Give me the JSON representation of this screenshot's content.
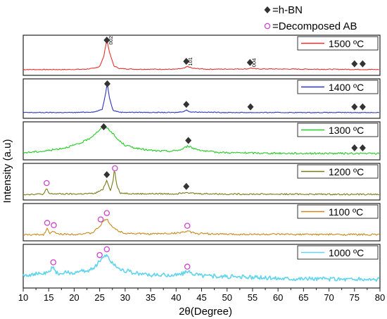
{
  "chart_data": {
    "type": "line",
    "xlabel": "2θ(Degree)",
    "ylabel": "Intensity (a.u)",
    "xlim": [
      10,
      80
    ],
    "x_ticks": [
      10,
      15,
      20,
      25,
      30,
      35,
      40,
      45,
      50,
      55,
      60,
      65,
      70,
      75,
      80
    ],
    "grid": false,
    "legend_position": "top-right",
    "legend": [
      {
        "marker": "diamond",
        "label": "=h-BN"
      },
      {
        "marker": "circle",
        "label": "=Decomposed AB"
      }
    ],
    "marker_colors": {
      "diamond": "#333333",
      "circle": "#cc44cc"
    },
    "series": [
      {
        "name": "1500 ºC",
        "color": "#e8312d",
        "points": [
          [
            10,
            0.05
          ],
          [
            18,
            0.05
          ],
          [
            22,
            0.06
          ],
          [
            24,
            0.09
          ],
          [
            25,
            0.15
          ],
          [
            25.8,
            0.45
          ],
          [
            26.4,
            1.0
          ],
          [
            27,
            0.55
          ],
          [
            27.8,
            0.16
          ],
          [
            29,
            0.08
          ],
          [
            32,
            0.06
          ],
          [
            40,
            0.06
          ],
          [
            41.6,
            0.09
          ],
          [
            42.2,
            0.15
          ],
          [
            43.2,
            0.09
          ],
          [
            46,
            0.06
          ],
          [
            54,
            0.07
          ],
          [
            54.6,
            0.1
          ],
          [
            55.6,
            0.07
          ],
          [
            80,
            0.05
          ]
        ],
        "peaks": [
          {
            "x": 26.4,
            "marker": "diamond",
            "label": "002"
          },
          {
            "x": 42.0,
            "marker": "diamond",
            "label": "101"
          },
          {
            "x": 54.5,
            "marker": "diamond",
            "label": "004"
          },
          {
            "x": 75.0,
            "marker": "diamond"
          },
          {
            "x": 76.6,
            "marker": "diamond"
          }
        ]
      },
      {
        "name": "1400 ºC",
        "color": "#2b35c2",
        "points": [
          [
            10,
            0.05
          ],
          [
            20,
            0.05
          ],
          [
            24,
            0.07
          ],
          [
            25.5,
            0.15
          ],
          [
            26.1,
            0.6
          ],
          [
            26.5,
            1.0
          ],
          [
            26.9,
            0.55
          ],
          [
            27.6,
            0.12
          ],
          [
            29,
            0.06
          ],
          [
            40,
            0.05
          ],
          [
            41.6,
            0.09
          ],
          [
            42,
            0.13
          ],
          [
            42.8,
            0.07
          ],
          [
            50,
            0.05
          ],
          [
            80,
            0.05
          ]
        ],
        "peaks": [
          {
            "x": 26.5,
            "marker": "diamond"
          },
          {
            "x": 42.0,
            "marker": "diamond"
          },
          {
            "x": 54.6,
            "marker": "diamond"
          },
          {
            "x": 75.0,
            "marker": "diamond"
          },
          {
            "x": 76.6,
            "marker": "diamond"
          }
        ]
      },
      {
        "name": "1300 ºC",
        "color": "#22cc22",
        "points": [
          [
            10,
            0.1
          ],
          [
            14,
            0.15
          ],
          [
            18,
            0.26
          ],
          [
            21,
            0.4
          ],
          [
            23,
            0.58
          ],
          [
            24.5,
            0.8
          ],
          [
            25.6,
            0.95
          ],
          [
            26.3,
            0.96
          ],
          [
            27.2,
            0.82
          ],
          [
            28.5,
            0.55
          ],
          [
            30,
            0.35
          ],
          [
            33,
            0.22
          ],
          [
            36,
            0.16
          ],
          [
            39,
            0.15
          ],
          [
            41,
            0.2
          ],
          [
            42.3,
            0.33
          ],
          [
            43.5,
            0.24
          ],
          [
            46,
            0.14
          ],
          [
            50,
            0.1
          ],
          [
            60,
            0.08
          ],
          [
            80,
            0.07
          ]
        ],
        "peaks": [
          {
            "x": 25.8,
            "marker": "diamond"
          },
          {
            "x": 42.4,
            "marker": "diamond"
          },
          {
            "x": 75.0,
            "marker": "diamond"
          },
          {
            "x": 76.6,
            "marker": "diamond"
          }
        ]
      },
      {
        "name": "1200 ºC",
        "color": "#7a7a1a",
        "points": [
          [
            10,
            0.05
          ],
          [
            14,
            0.06
          ],
          [
            14.6,
            0.25
          ],
          [
            15.1,
            0.07
          ],
          [
            20,
            0.06
          ],
          [
            24,
            0.08
          ],
          [
            25.6,
            0.22
          ],
          [
            26.4,
            0.55
          ],
          [
            27.1,
            0.2
          ],
          [
            27.6,
            0.5
          ],
          [
            27.9,
            0.98
          ],
          [
            28.3,
            0.4
          ],
          [
            29,
            0.1
          ],
          [
            32,
            0.07
          ],
          [
            40,
            0.07
          ],
          [
            42,
            0.13
          ],
          [
            43.5,
            0.08
          ],
          [
            50,
            0.06
          ],
          [
            80,
            0.05
          ]
        ],
        "peaks": [
          {
            "x": 14.6,
            "marker": "circle"
          },
          {
            "x": 26.4,
            "marker": "diamond"
          },
          {
            "x": 28.0,
            "marker": "circle"
          },
          {
            "x": 42.0,
            "marker": "diamond"
          }
        ]
      },
      {
        "name": "1100 ºC",
        "color": "#c68a1a",
        "points": [
          [
            10,
            0.06
          ],
          [
            14,
            0.07
          ],
          [
            14.7,
            0.28
          ],
          [
            15.3,
            0.1
          ],
          [
            16,
            0.2
          ],
          [
            16.5,
            0.09
          ],
          [
            20,
            0.08
          ],
          [
            23.5,
            0.12
          ],
          [
            25,
            0.35
          ],
          [
            25.6,
            0.5
          ],
          [
            26.4,
            0.62
          ],
          [
            27.2,
            0.4
          ],
          [
            28.5,
            0.2
          ],
          [
            30,
            0.12
          ],
          [
            35,
            0.09
          ],
          [
            40,
            0.12
          ],
          [
            42.2,
            0.18
          ],
          [
            44,
            0.11
          ],
          [
            50,
            0.08
          ],
          [
            80,
            0.07
          ]
        ],
        "peaks": [
          {
            "x": 14.7,
            "marker": "circle"
          },
          {
            "x": 16.0,
            "marker": "circle"
          },
          {
            "x": 25.2,
            "marker": "circle"
          },
          {
            "x": 26.4,
            "marker": "circle"
          },
          {
            "x": 42.2,
            "marker": "circle"
          }
        ]
      },
      {
        "name": "1000 ºC",
        "color": "#5fd4ec",
        "points": [
          [
            10,
            0.25
          ],
          [
            15,
            0.3
          ],
          [
            15.7,
            0.5
          ],
          [
            16.5,
            0.3
          ],
          [
            20,
            0.32
          ],
          [
            23,
            0.38
          ],
          [
            24.5,
            0.55
          ],
          [
            25.3,
            0.72
          ],
          [
            26.4,
            0.82
          ],
          [
            27.4,
            0.6
          ],
          [
            29,
            0.42
          ],
          [
            32,
            0.3
          ],
          [
            36,
            0.24
          ],
          [
            40,
            0.25
          ],
          [
            42.3,
            0.33
          ],
          [
            45,
            0.24
          ],
          [
            50,
            0.2
          ],
          [
            60,
            0.16
          ],
          [
            80,
            0.12
          ]
        ],
        "peaks": [
          {
            "x": 15.9,
            "marker": "circle"
          },
          {
            "x": 25.0,
            "marker": "circle"
          },
          {
            "x": 26.4,
            "marker": "circle"
          },
          {
            "x": 42.2,
            "marker": "circle"
          }
        ]
      }
    ]
  }
}
